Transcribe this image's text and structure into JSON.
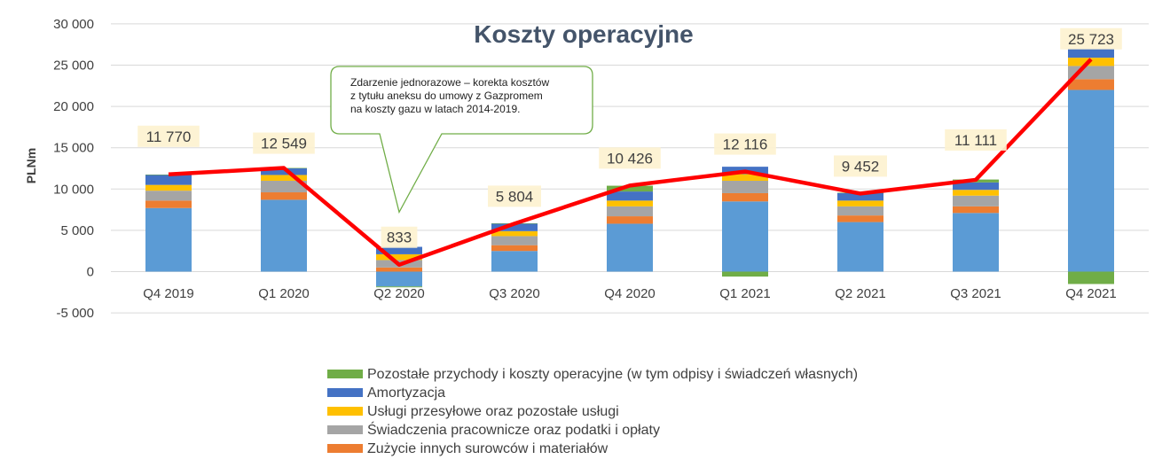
{
  "chart_data": {
    "type": "bar",
    "stacked": true,
    "title": "Koszty operacyjne",
    "ylabel": "PLNm",
    "xlabel": "",
    "ylim": [
      -5000,
      30000
    ],
    "yticks": [
      -5000,
      0,
      5000,
      10000,
      15000,
      20000,
      25000,
      30000
    ],
    "ytick_labels": [
      "-5 000",
      "0",
      "5 000",
      "10 000",
      "15 000",
      "20 000",
      "25 000",
      "30 000"
    ],
    "grid": true,
    "legend_position": "bottom",
    "categories": [
      "Q4 2019",
      "Q1 2020",
      "Q2 2020",
      "Q3 2020",
      "Q4 2020",
      "Q1 2021",
      "Q2 2021",
      "Q3 2021",
      "Q4 2021"
    ],
    "series": [
      {
        "key": "gas",
        "color": "#5b9bd5",
        "in_legend": false,
        "values": [
          7700,
          8700,
          -1800,
          2500,
          5800,
          8500,
          6000,
          7100,
          22000
        ]
      },
      {
        "name": "Zużycie innych surowców i materiałów",
        "key": "materials",
        "color": "#ed7d31",
        "values": [
          900,
          900,
          500,
          700,
          900,
          1000,
          800,
          800,
          1300
        ]
      },
      {
        "name": "Świadczenia pracownicze oraz podatki i opłaty",
        "key": "employee",
        "color": "#a5a5a5",
        "values": [
          1200,
          1400,
          900,
          1100,
          1200,
          1500,
          1100,
          1300,
          1600
        ]
      },
      {
        "name": "Usługi przesyłowe oraz pozostałe usługi",
        "key": "transmission",
        "color": "#ffc000",
        "values": [
          700,
          700,
          700,
          600,
          700,
          800,
          700,
          700,
          1000
        ]
      },
      {
        "name": "Amortyzacja",
        "key": "depreciation",
        "color": "#4472c4",
        "values": [
          1200,
          800,
          900,
          900,
          1100,
          900,
          900,
          900,
          1100
        ]
      },
      {
        "name": "Pozostałe przychody i koszty operacyjne (w tym odpisy i świadczeń własnych)",
        "key": "other",
        "color": "#70ad47",
        "values": [
          50,
          50,
          -100,
          50,
          700,
          -600,
          50,
          350,
          -1500
        ]
      }
    ],
    "totals": {
      "name": "",
      "color": "#ff0000",
      "values": [
        11770,
        12549,
        833,
        5804,
        10426,
        12116,
        9452,
        11111,
        25723
      ],
      "labels": [
        "11 770",
        "12 549",
        "833",
        "5 804",
        "10 426",
        "12 116",
        "9 452",
        "11 111",
        "25 723"
      ]
    },
    "annotation": {
      "text_lines": [
        "Zdarzenie jednorazowe – korekta kosztów",
        "z tytułu aneksu do umowy z Gazpromem",
        "na koszty gazu w latach 2014-2019."
      ],
      "category": "Q2 2020",
      "border_color": "#70ad47"
    }
  }
}
